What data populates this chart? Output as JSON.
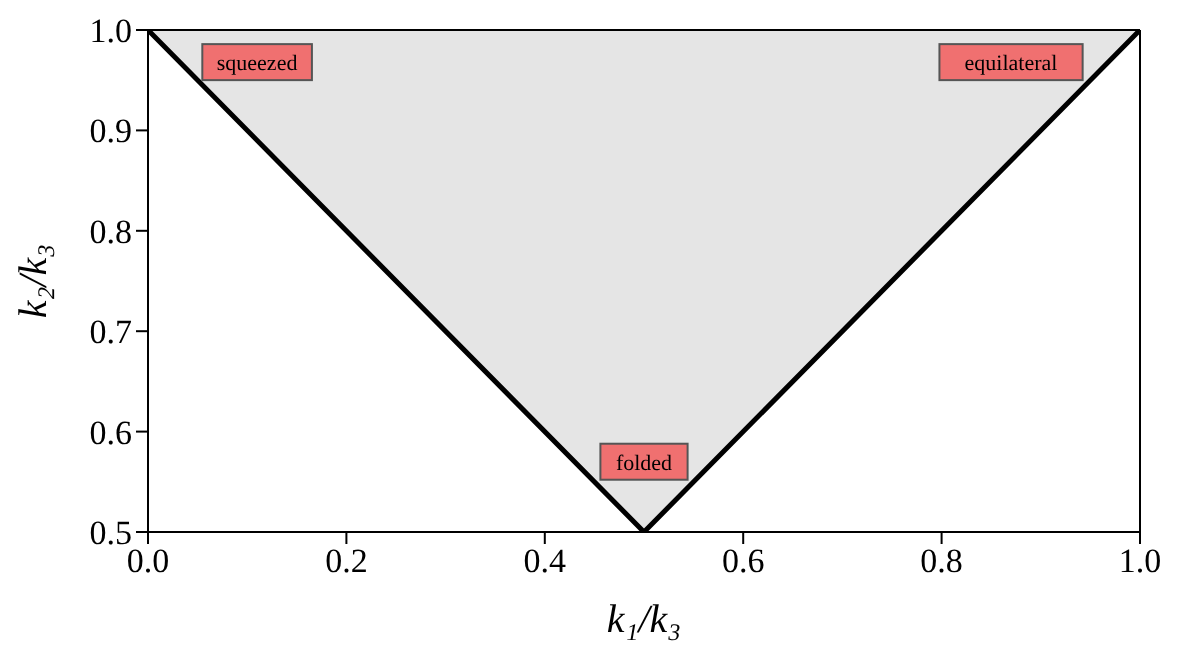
{
  "chart_data": {
    "type": "area",
    "xlabel": "k₁/k₃",
    "ylabel": "k₂/k₃",
    "x": [
      0,
      0.5,
      1
    ],
    "series": [
      {
        "color": "#000000",
        "values": [
          1,
          0.5,
          1
        ]
      }
    ],
    "xlim": [
      0,
      1
    ],
    "xticks": [
      {
        "value": 0,
        "label": "0.0"
      },
      {
        "value": 0.2,
        "label": "0.2"
      },
      {
        "value": 0.4,
        "label": "0.4"
      },
      {
        "value": 0.6,
        "label": "0.6"
      },
      {
        "value": 0.8,
        "label": "0.8"
      },
      {
        "value": 1,
        "label": "1.0"
      }
    ],
    "ylim": [
      0.5,
      1
    ],
    "yticks": [
      {
        "value": 0.5,
        "label": "0.5"
      },
      {
        "value": 0.6,
        "label": "0.6"
      },
      {
        "value": 0.7,
        "label": "0.7"
      },
      {
        "value": 0.8,
        "label": "0.8"
      },
      {
        "value": 0.9,
        "label": "0.9"
      },
      {
        "value": 1,
        "label": "1.0"
      }
    ],
    "annotations": [
      "squeezed",
      "equilateral",
      "folded"
    ]
  }
}
